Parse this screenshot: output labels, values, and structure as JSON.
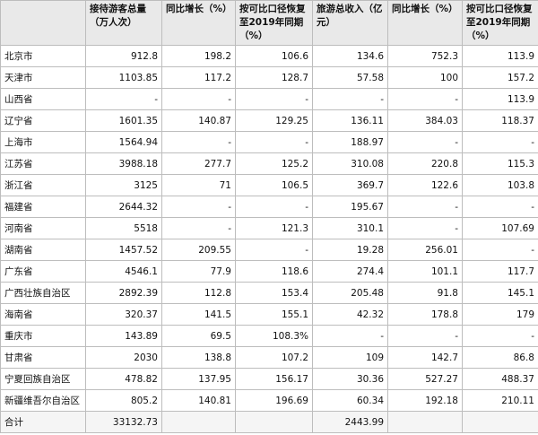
{
  "table": {
    "header": [
      "接待游客总量（万人次）",
      "同比增长（%）",
      "按可比口径恢复至2019年同期（%）",
      "旅游总收入（亿元）",
      "同比增长（%）",
      "按可比口径恢复至2019年同期（%）"
    ],
    "rows": [
      [
        "北京市",
        "912.8",
        "198.2",
        "106.6",
        "134.6",
        "752.3",
        "113.9"
      ],
      [
        "天津市",
        "1103.85",
        "117.2",
        "128.7",
        "57.58",
        "100",
        "157.2"
      ],
      [
        "山西省",
        "-",
        "-",
        "-",
        "-",
        "-",
        "113.9"
      ],
      [
        "辽宁省",
        "1601.35",
        "140.87",
        "129.25",
        "136.11",
        "384.03",
        "118.37"
      ],
      [
        "上海市",
        "1564.94",
        "-",
        "-",
        "188.97",
        "-",
        "-"
      ],
      [
        "江苏省",
        "3988.18",
        "277.7",
        "125.2",
        "310.08",
        "220.8",
        "115.3"
      ],
      [
        "浙江省",
        "3125",
        "71",
        "106.5",
        "369.7",
        "122.6",
        "103.8"
      ],
      [
        "福建省",
        "2644.32",
        "-",
        "-",
        "195.67",
        "-",
        "-"
      ],
      [
        "河南省",
        "5518",
        "-",
        "121.3",
        "310.1",
        "-",
        "107.69"
      ],
      [
        "湖南省",
        "1457.52",
        "209.55",
        "-",
        "19.28",
        "256.01",
        "-"
      ],
      [
        "广东省",
        "4546.1",
        "77.9",
        "118.6",
        "274.4",
        "101.1",
        "117.7"
      ],
      [
        "广西壮族自治区",
        "2892.39",
        "112.8",
        "153.4",
        "205.48",
        "91.8",
        "145.1"
      ],
      [
        "海南省",
        "320.37",
        "141.5",
        "155.1",
        "42.32",
        "178.8",
        "179"
      ],
      [
        "重庆市",
        "143.89",
        "69.5",
        "108.3%",
        "-",
        "-",
        "-"
      ],
      [
        "甘肃省",
        "2030",
        "138.8",
        "107.2",
        "109",
        "142.7",
        "86.8"
      ],
      [
        "宁夏回族自治区",
        "478.82",
        "137.95",
        "156.17",
        "30.36",
        "527.27",
        "488.37"
      ],
      [
        "新疆维吾尔自治区",
        "805.2",
        "140.81",
        "196.69",
        "60.34",
        "192.18",
        "210.11"
      ],
      [
        "合计",
        "33132.73",
        null,
        null,
        "2443.99",
        null,
        null
      ]
    ]
  }
}
